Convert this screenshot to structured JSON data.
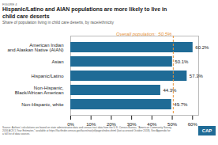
{
  "chart_data": {
    "type": "bar",
    "orientation": "horizontal",
    "figure_label": "FIGURE 4",
    "title": "Hispanic/Latino and AIAN populations are more likely to live in\nchild care deserts",
    "subtitle": "Share of population living in child care deserts, by race/ethnicity",
    "categories": [
      "American Indian\nand Alaskan Native (AIAN)",
      "Asian",
      "Hispanic/Latino",
      "Non-Hispanic,\nBlack/African American",
      "Non-Hispanic, white"
    ],
    "values": [
      60.2,
      50.1,
      57.3,
      44.3,
      49.7
    ],
    "value_labels": [
      "60.2%",
      "50.1%",
      "57.3%",
      "44.3%",
      "49.7%"
    ],
    "data_labels": true,
    "color": "#1F6B96",
    "xlim": [
      0,
      63
    ],
    "xticks": [
      {
        "value": 0,
        "label": "0%"
      },
      {
        "value": 10,
        "label": "10%"
      },
      {
        "value": 20,
        "label": "20%"
      },
      {
        "value": 30,
        "label": "30%"
      },
      {
        "value": 40,
        "label": "40%"
      },
      {
        "value": 50,
        "label": "50%"
      },
      {
        "value": 60,
        "label": "60%"
      }
    ],
    "grid": false,
    "annotations": [
      {
        "text": "Overall population:  50.5%",
        "x": 50.5,
        "color": "#E8943A",
        "line_style": "dashed"
      }
    ],
    "caption": "Source: Authors' calculations are based on state administrative data and census tract data from the U.S. Census Bureau, \"American Community Survey,\n2016 ACS 1-Year Estimates,\" available at https://factfinder.census.gov/faces/nav/jsf/pages/index.xhtml (last accessed October 2018). See Appendix for\na full list of data sources.",
    "logo": "CAP"
  }
}
